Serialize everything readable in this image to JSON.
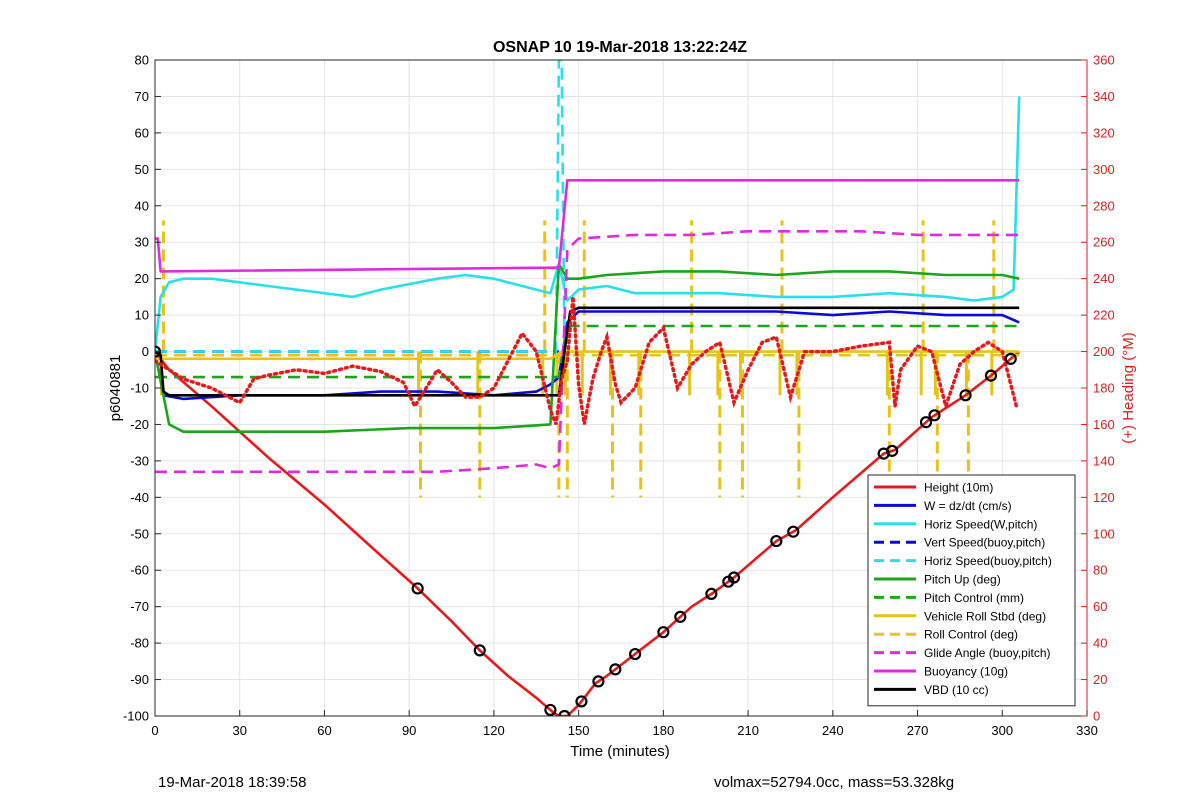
{
  "chart_data": {
    "type": "line",
    "title": "OSNAP 10 19-Mar-2018 13:22:24Z",
    "xlabel": "Time (minutes)",
    "ylabel": "p6040881",
    "y2label": "(+) Heading (°M)",
    "xlim": [
      0,
      330
    ],
    "ylim": [
      -100,
      80
    ],
    "y2lim": [
      0,
      360
    ],
    "xticks": [
      0,
      30,
      60,
      90,
      120,
      150,
      180,
      210,
      240,
      270,
      300,
      330
    ],
    "yticks": [
      -100,
      -90,
      -80,
      -70,
      -60,
      -50,
      -40,
      -30,
      -20,
      -10,
      0,
      10,
      20,
      30,
      40,
      50,
      60,
      70,
      80
    ],
    "y2ticks": [
      0,
      20,
      40,
      60,
      80,
      100,
      120,
      140,
      160,
      180,
      200,
      220,
      240,
      260,
      280,
      300,
      320,
      340,
      360
    ],
    "grid": true,
    "legend_position": "bottom-right",
    "colors": {
      "height": "#e41a1c",
      "w": "#0a0ad8",
      "horiz": "#27e0e8",
      "pitch": "#1aa51a",
      "roll": "#e6c21a",
      "glide": "#e02ae0",
      "buoy": "#e02ae0",
      "vbd": "#000000",
      "heading": "#e41a1c",
      "right_axis": "#d62020"
    },
    "series": [
      {
        "name": "Height (10m)",
        "color": "#e41a1c",
        "style": "solid",
        "x": [
          0,
          5,
          20,
          40,
          60,
          80,
          93,
          105,
          115,
          125,
          135,
          141,
          143,
          146,
          150,
          156,
          160,
          165,
          170,
          180,
          190,
          198,
          205,
          220,
          227,
          240,
          258,
          262,
          275,
          287,
          297,
          303,
          306
        ],
        "y": [
          0,
          -5,
          -15,
          -29,
          -42,
          -56,
          -65,
          -74,
          -82,
          -89,
          -95,
          -99,
          -100,
          -100,
          -97,
          -91,
          -89,
          -86,
          -83,
          -77,
          -70,
          -66,
          -62,
          -52,
          -49,
          -40,
          -28,
          -27,
          -18,
          -12,
          -6,
          -2,
          0
        ]
      },
      {
        "name": "W = dz/dt (cm/s)",
        "color": "#0a0ad8",
        "style": "solid",
        "x": [
          0,
          3,
          10,
          30,
          60,
          80,
          100,
          120,
          135,
          140,
          143,
          146,
          150,
          160,
          180,
          200,
          220,
          240,
          260,
          280,
          300,
          306
        ],
        "y": [
          0,
          -12,
          -13,
          -12,
          -12,
          -11,
          -11,
          -12,
          -11,
          -9,
          -7,
          8,
          11,
          11,
          11,
          11,
          11,
          10,
          11,
          10,
          10,
          8
        ]
      },
      {
        "name": "Horiz Speed(W,pitch)",
        "color": "#27e0e8",
        "style": "solid",
        "x": [
          0,
          2,
          5,
          10,
          20,
          40,
          60,
          70,
          80,
          100,
          110,
          120,
          130,
          140,
          143,
          146,
          150,
          160,
          170,
          180,
          200,
          220,
          240,
          260,
          280,
          290,
          300,
          304,
          306
        ],
        "y": [
          0,
          15,
          19,
          20,
          20,
          18,
          16,
          15,
          17,
          20,
          21,
          20,
          18,
          16,
          24,
          14,
          17,
          18,
          16,
          16,
          16,
          15,
          15,
          16,
          15,
          14,
          15,
          17,
          70
        ]
      },
      {
        "name": "Vert Speed(buoy,pitch)",
        "color": "#0a0ad8",
        "style": "dash",
        "x": [
          0,
          143
        ],
        "y": [
          0,
          0
        ]
      },
      {
        "name": "Horiz Speed(buoy,pitch)",
        "color": "#27e0e8",
        "style": "dash",
        "x": [
          0,
          142,
          143,
          144,
          145
        ],
        "y": [
          0,
          0,
          80,
          80,
          0
        ]
      },
      {
        "name": "Pitch Up (deg)",
        "color": "#1aa51a",
        "style": "solid",
        "x": [
          0,
          5,
          10,
          30,
          60,
          90,
          120,
          140,
          143,
          146,
          150,
          160,
          180,
          200,
          220,
          240,
          260,
          280,
          300,
          306
        ],
        "y": [
          0,
          -20,
          -22,
          -22,
          -22,
          -21,
          -21,
          -20,
          24,
          20,
          20,
          21,
          22,
          22,
          21,
          22,
          22,
          21,
          21,
          20
        ]
      },
      {
        "name": "Pitch Control (mm)",
        "color": "#1aa51a",
        "style": "dash",
        "x": [
          0,
          143,
          146,
          306
        ],
        "y": [
          -7,
          -7,
          7,
          7
        ]
      },
      {
        "name": "Vehicle Roll Stbd (deg)",
        "color": "#e6c21a",
        "style": "solid",
        "x": [
          0,
          90,
          140,
          144,
          150,
          306
        ],
        "y": [
          -2,
          -2,
          -2,
          0,
          0,
          0
        ]
      },
      {
        "name": "Roll Control (deg)",
        "color": "#e6c21a",
        "style": "dash",
        "x": [
          0,
          306
        ],
        "y": [
          -1,
          -1
        ]
      },
      {
        "name": "Glide Angle (buoy,pitch)",
        "color": "#e02ae0",
        "style": "dash",
        "x": [
          0,
          20,
          40,
          60,
          80,
          100,
          120,
          135,
          140,
          143,
          146,
          150,
          170,
          190,
          210,
          230,
          250,
          270,
          290,
          306
        ],
        "y": [
          -33,
          -33,
          -33,
          -33,
          -33,
          -33,
          -32,
          -31,
          -32,
          -31,
          28,
          31,
          32,
          32,
          33,
          33,
          33,
          32,
          32,
          32
        ]
      },
      {
        "name": "Buoyancy (10g)",
        "color": "#e02ae0",
        "style": "solid",
        "x": [
          0,
          1,
          2,
          140,
          143,
          146,
          150,
          200,
          250,
          300,
          306
        ],
        "y": [
          31,
          31,
          22,
          23,
          23,
          47,
          47,
          47,
          47,
          47,
          47
        ]
      },
      {
        "name": "VBD (10 cc)",
        "color": "#000000",
        "style": "solid",
        "x": [
          0,
          2,
          3,
          5,
          143,
          145,
          147,
          150,
          200,
          250,
          306
        ],
        "y": [
          0,
          -1,
          -11,
          -12,
          -12,
          0,
          11,
          12,
          12,
          12,
          12
        ]
      }
    ],
    "heading_series": {
      "name": "Heading (°M)",
      "axis": "right",
      "color": "#e41a1c",
      "style": "dotted",
      "x": [
        0,
        10,
        20,
        30,
        35,
        40,
        50,
        60,
        70,
        80,
        88,
        92,
        100,
        105,
        110,
        115,
        120,
        125,
        130,
        135,
        140,
        142,
        144,
        146,
        148,
        150,
        152,
        155,
        158,
        160,
        163,
        165,
        170,
        175,
        180,
        185,
        190,
        195,
        200,
        205,
        210,
        215,
        220,
        225,
        230,
        240,
        250,
        260,
        262,
        264,
        270,
        275,
        280,
        285,
        290,
        295,
        300,
        305
      ],
      "y": [
        195,
        185,
        180,
        172,
        185,
        187,
        190,
        188,
        192,
        189,
        183,
        170,
        190,
        183,
        175,
        175,
        180,
        195,
        210,
        200,
        168,
        160,
        185,
        195,
        230,
        182,
        160,
        185,
        200,
        208,
        182,
        172,
        180,
        205,
        213,
        180,
        193,
        200,
        205,
        172,
        190,
        205,
        208,
        175,
        200,
        200,
        203,
        205,
        170,
        190,
        203,
        200,
        170,
        193,
        200,
        205,
        200,
        170
      ]
    },
    "markers": {
      "style": "black circles on Height curve",
      "x": [
        0,
        93,
        115,
        140,
        145,
        151,
        157,
        163,
        170,
        180,
        186,
        197,
        203,
        205,
        220,
        226,
        258,
        261,
        273,
        276,
        287,
        296,
        303
      ]
    },
    "spikes": {
      "roll_x": [
        3,
        94,
        115,
        138,
        143,
        146,
        152,
        162,
        172,
        190,
        200,
        208,
        222,
        228,
        260,
        272,
        277,
        288,
        297
      ],
      "spike_high": 36,
      "spike_low": -40
    }
  },
  "footer": {
    "left": "19-Mar-2018 18:39:58",
    "right": "volmax=52794.0cc, mass=53.328kg"
  }
}
